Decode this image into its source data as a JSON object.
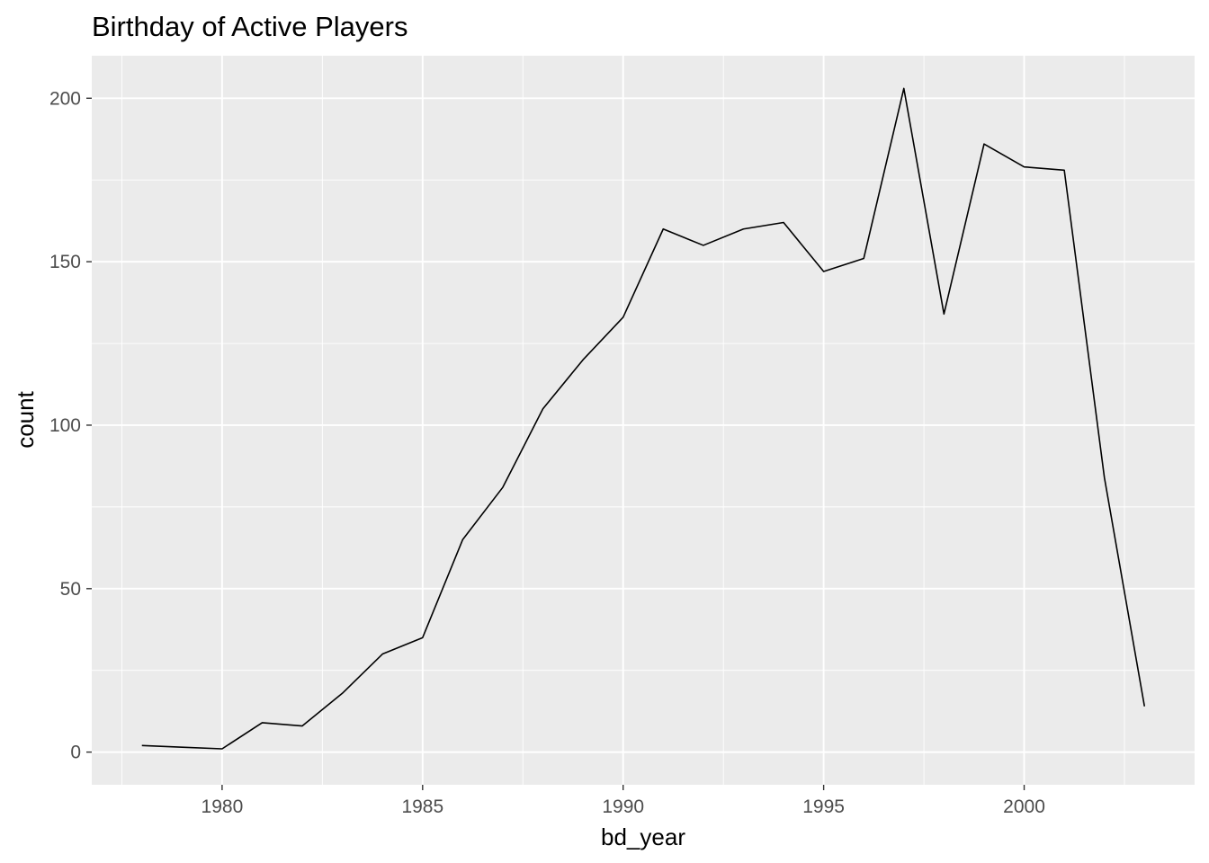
{
  "chart_data": {
    "type": "line",
    "title": "Birthday of Active Players",
    "xlabel": "bd_year",
    "ylabel": "count",
    "xlim": [
      1976.75,
      2004.25
    ],
    "ylim": [
      -10,
      213
    ],
    "x_ticks": [
      1980,
      1985,
      1990,
      1995,
      2000
    ],
    "y_ticks": [
      0,
      50,
      100,
      150,
      200
    ],
    "grid": true,
    "colors": {
      "panel": "#ebebeb",
      "grid": "#ffffff",
      "line": "#000000",
      "tick_text": "#4d4d4d"
    },
    "series": [
      {
        "x": [
          1978,
          1979,
          1980,
          1981,
          1982,
          1983,
          1984,
          1985,
          1986,
          1987,
          1988,
          1989,
          1990,
          1991,
          1992,
          1993,
          1994,
          1995,
          1996,
          1997,
          1998,
          1999,
          2000,
          2001,
          2002,
          2003
        ],
        "values": [
          2,
          1.5,
          1,
          9,
          8,
          18,
          30,
          35,
          65,
          81,
          105,
          120,
          133,
          160,
          155,
          160,
          162,
          147,
          151,
          203,
          134,
          186,
          179,
          178,
          84,
          14
        ]
      }
    ]
  }
}
